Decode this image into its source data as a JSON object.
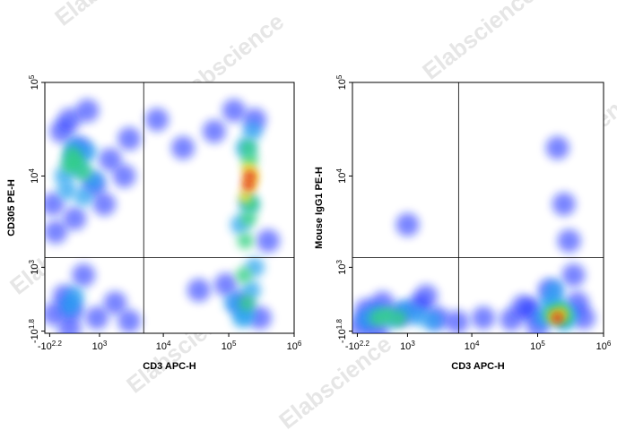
{
  "watermark": "Elabscience",
  "chart_data": [
    {
      "type": "scatter",
      "xlabel": "CD3 APC-H",
      "ylabel": "CD305 PE-H",
      "xlim": [
        -250,
        1000000
      ],
      "ylim": [
        -90,
        100000
      ],
      "xticks": [
        {
          "value": -158,
          "label": "-10^2.2"
        },
        {
          "value": 1000,
          "label": "10^3"
        },
        {
          "value": 10000,
          "label": "10^4"
        },
        {
          "value": 100000,
          "label": "10^5"
        },
        {
          "value": 1000000,
          "label": "10^6"
        }
      ],
      "yticks": [
        {
          "value": -63,
          "label": "-10^1.8"
        },
        {
          "value": 1000,
          "label": "10^3"
        },
        {
          "value": 10000,
          "label": "10^4"
        },
        {
          "value": 100000,
          "label": "10^5"
        }
      ],
      "gate": {
        "x": 5000,
        "y": 1300
      },
      "series": [
        {
          "color": "#1020ff",
          "x": [
            -100,
            50,
            200,
            400,
            800,
            1500,
            2500,
            3000,
            -50,
            300,
            600,
            1200,
            100,
            250,
            20000,
            8000,
            60000,
            90000,
            150000,
            300000,
            400000,
            120000,
            250000,
            200,
            500,
            900,
            -80,
            1800,
            35000,
            3000
          ],
          "y": [
            5000,
            30000,
            40000,
            20000,
            8000,
            15000,
            10000,
            25000,
            2500,
            3500,
            50000,
            5000,
            400,
            200,
            20000,
            40000,
            30000,
            600,
            300,
            100,
            2000,
            50000,
            40000,
            -30,
            800,
            100,
            150,
            300,
            500,
            60
          ]
        },
        {
          "color": "#20a0f0",
          "x": [
            100,
            250,
            400,
            600,
            800,
            150,
            300,
            500,
            120000,
            180000,
            220000,
            250000,
            150000,
            200000,
            180000,
            230000,
            160000,
            300,
            200
          ],
          "y": [
            10000,
            15000,
            12000,
            18000,
            9000,
            7000,
            20000,
            6000,
            300,
            150,
            500,
            1000,
            3000,
            5000,
            20000,
            30000,
            100,
            400,
            250
          ]
        },
        {
          "color": "#30d080",
          "x": [
            200,
            350,
            500,
            250,
            180000,
            200000,
            220000,
            170000,
            190000,
            210000,
            200000
          ],
          "y": [
            13000,
            14000,
            11000,
            17000,
            2000,
            3500,
            5000,
            800,
            300,
            15000,
            20000
          ]
        },
        {
          "color": "#f0e020",
          "x": [
            180000,
            210000,
            200000,
            230000
          ],
          "y": [
            6000,
            8000,
            12000,
            10000
          ]
        },
        {
          "color": "#e02010",
          "x": [
            200000,
            210000
          ],
          "y": [
            8000,
            10000
          ]
        }
      ]
    },
    {
      "type": "scatter",
      "xlabel": "CD3 APC-H",
      "ylabel": "Mouse IgG1 PE-H",
      "xlim": [
        -250,
        1000000
      ],
      "ylim": [
        -90,
        100000
      ],
      "xticks": [
        {
          "value": -158,
          "label": "-10^2.2"
        },
        {
          "value": 1000,
          "label": "10^3"
        },
        {
          "value": 10000,
          "label": "10^4"
        },
        {
          "value": 100000,
          "label": "10^5"
        },
        {
          "value": 1000000,
          "label": "10^6"
        }
      ],
      "yticks": [
        {
          "value": -63,
          "label": "-10^1.8"
        },
        {
          "value": 1000,
          "label": "10^3"
        },
        {
          "value": 10000,
          "label": "10^4"
        },
        {
          "value": 100000,
          "label": "10^5"
        }
      ],
      "gate": {
        "x": 6300,
        "y": 1300
      },
      "series": [
        {
          "color": "#1020ff",
          "x": [
            -100,
            0,
            300,
            800,
            1500,
            3000,
            6000,
            15000,
            40000,
            80000,
            400000,
            500000,
            300000,
            250000,
            200000,
            1000,
            2000,
            150000,
            100000,
            350000,
            200,
            60000
          ],
          "y": [
            0,
            200,
            300,
            150,
            250,
            100,
            50,
            100,
            80,
            200,
            300,
            100,
            2000,
            5000,
            20000,
            3000,
            400,
            500,
            0,
            800,
            -50,
            250
          ]
        },
        {
          "color": "#20a0f0",
          "x": [
            0,
            200,
            500,
            900,
            1500,
            2500,
            120000,
            200000,
            300000,
            150000,
            250000,
            180000
          ],
          "y": [
            80,
            150,
            100,
            200,
            120,
            60,
            100,
            250,
            150,
            300,
            50,
            500
          ]
        },
        {
          "color": "#30d080",
          "x": [
            200,
            400,
            700,
            160000,
            220000,
            260000
          ],
          "y": [
            100,
            130,
            90,
            150,
            200,
            100
          ]
        },
        {
          "color": "#f0e020",
          "x": [
            180000,
            230000
          ],
          "y": [
            120,
            150
          ]
        },
        {
          "color": "#e02010",
          "x": [
            200000
          ],
          "y": [
            100
          ]
        }
      ]
    }
  ]
}
